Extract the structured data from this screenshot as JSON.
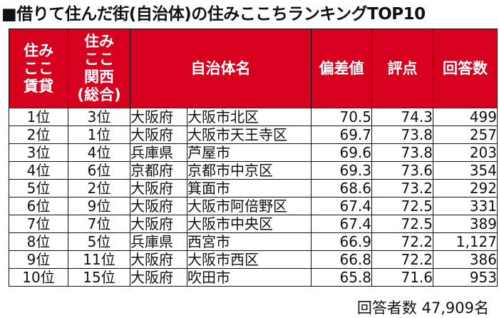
{
  "title": "■借りて住んだ街(自治体)の住みここちランキングTOP10",
  "columns": {
    "rank_rent": "住み\nここ\n賃貸",
    "rank_kansai": "住み\nここ\n関西\n(総合)",
    "municipality": "自治体名",
    "deviation": "偏差値",
    "score": "評点",
    "responses": "回答数"
  },
  "rows": [
    {
      "rank_rent": "1位",
      "rank_kansai": "3位",
      "prefecture": "大阪府",
      "city": "大阪市北区",
      "deviation": "70.5",
      "score": "74.3",
      "responses": "499"
    },
    {
      "rank_rent": "2位",
      "rank_kansai": "1位",
      "prefecture": "大阪府",
      "city": "大阪市天王寺区",
      "deviation": "69.7",
      "score": "73.8",
      "responses": "257"
    },
    {
      "rank_rent": "3位",
      "rank_kansai": "4位",
      "prefecture": "兵庫県",
      "city": "芦屋市",
      "deviation": "69.6",
      "score": "73.8",
      "responses": "203"
    },
    {
      "rank_rent": "4位",
      "rank_kansai": "6位",
      "prefecture": "京都府",
      "city": "京都市中京区",
      "deviation": "69.3",
      "score": "73.6",
      "responses": "354"
    },
    {
      "rank_rent": "5位",
      "rank_kansai": "2位",
      "prefecture": "大阪府",
      "city": "箕面市",
      "deviation": "68.6",
      "score": "73.2",
      "responses": "292"
    },
    {
      "rank_rent": "6位",
      "rank_kansai": "9位",
      "prefecture": "大阪府",
      "city": "大阪市阿倍野区",
      "deviation": "67.4",
      "score": "72.5",
      "responses": "331"
    },
    {
      "rank_rent": "7位",
      "rank_kansai": "7位",
      "prefecture": "大阪府",
      "city": "大阪市中央区",
      "deviation": "67.4",
      "score": "72.5",
      "responses": "389"
    },
    {
      "rank_rent": "8位",
      "rank_kansai": "5位",
      "prefecture": "兵庫県",
      "city": "西宮市",
      "deviation": "66.9",
      "score": "72.2",
      "responses": "1,127"
    },
    {
      "rank_rent": "9位",
      "rank_kansai": "11位",
      "prefecture": "大阪府",
      "city": "大阪市西区",
      "deviation": "66.8",
      "score": "72.2",
      "responses": "386"
    },
    {
      "rank_rent": "10位",
      "rank_kansai": "15位",
      "prefecture": "大阪府",
      "city": "吹田市",
      "deviation": "65.8",
      "score": "71.6",
      "responses": "953"
    }
  ],
  "footer": "回答者数 47,909名",
  "colors": {
    "header_bg": "#d8001f",
    "header_text": "#ffffff",
    "border": "#111111"
  }
}
